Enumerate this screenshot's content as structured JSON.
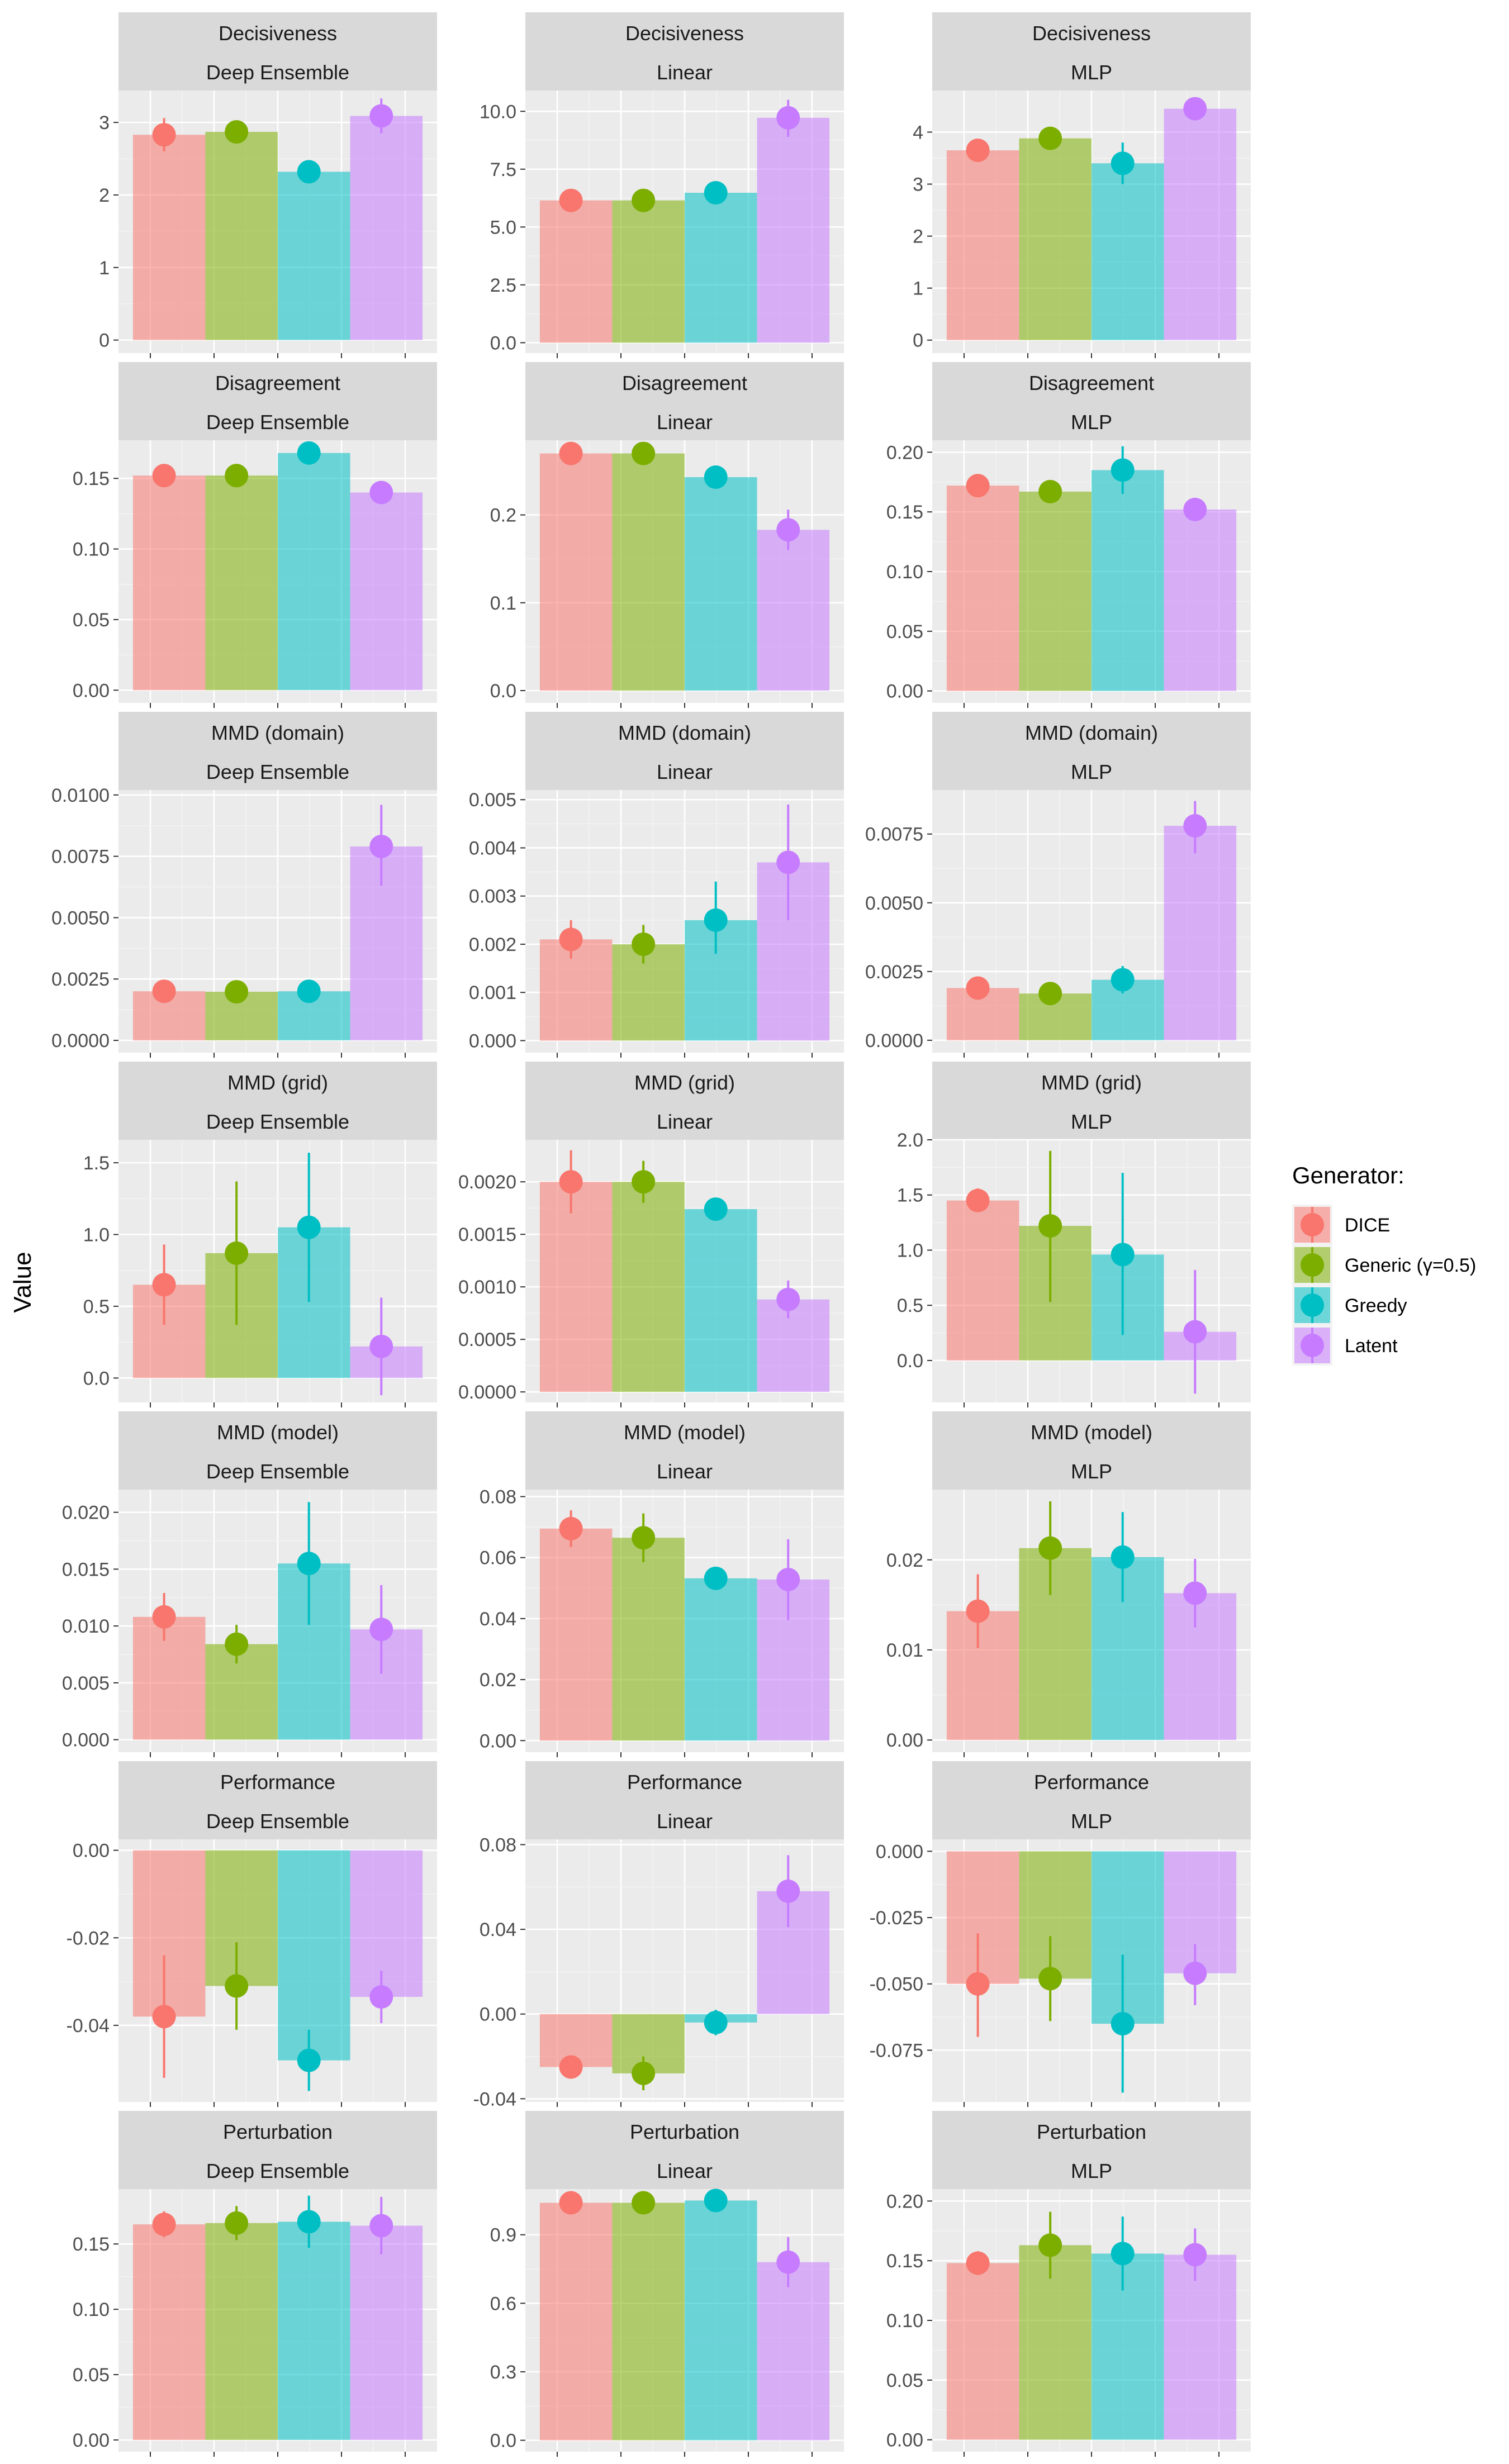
{
  "ylabel": "Value",
  "legend": {
    "title": "Generator:",
    "placement": "right",
    "entries": [
      {
        "name": "DICE",
        "color": "#F8766D"
      },
      {
        "name": "Generic (γ=0.5)",
        "color": "#7CAE00"
      },
      {
        "name": "Greedy",
        "color": "#00BFC4"
      },
      {
        "name": "Latent",
        "color": "#C77CFF"
      }
    ]
  },
  "chart_data": [
    {
      "type": "bar",
      "metric": "Decisiveness",
      "model": "Deep Ensemble",
      "categories": [
        "DICE",
        "Generic (γ=0.5)",
        "Greedy",
        "Latent"
      ],
      "values": [
        2.83,
        2.87,
        2.32,
        3.09
      ],
      "err_low": [
        2.6,
        2.78,
        2.22,
        2.85
      ],
      "err_high": [
        3.06,
        2.96,
        2.42,
        3.33
      ],
      "ylim": [
        -0.18,
        3.44
      ],
      "ticks": [
        0,
        1,
        2,
        3
      ],
      "tick_labels": [
        "0",
        "1",
        "2",
        "3"
      ]
    },
    {
      "type": "bar",
      "metric": "Decisiveness",
      "model": "Linear",
      "categories": [
        "DICE",
        "Generic (γ=0.5)",
        "Greedy",
        "Latent"
      ],
      "values": [
        6.15,
        6.15,
        6.48,
        9.72
      ],
      "err_low": [
        6.0,
        5.95,
        6.15,
        8.9
      ],
      "err_high": [
        6.3,
        6.35,
        6.8,
        10.5
      ],
      "ylim": [
        -0.45,
        10.9
      ],
      "ticks": [
        0,
        2.5,
        5,
        7.5,
        10
      ],
      "tick_labels": [
        "0.0",
        "2.5",
        "5.0",
        "7.5",
        "10.0"
      ]
    },
    {
      "type": "bar",
      "metric": "Decisiveness",
      "model": "MLP",
      "categories": [
        "DICE",
        "Generic (γ=0.5)",
        "Greedy",
        "Latent"
      ],
      "values": [
        3.65,
        3.88,
        3.4,
        4.45
      ],
      "err_low": [
        3.5,
        3.78,
        3.0,
        4.3
      ],
      "err_high": [
        3.8,
        3.98,
        3.8,
        4.6
      ],
      "ylim": [
        -0.25,
        4.8
      ],
      "ticks": [
        0,
        1,
        2,
        3,
        4
      ],
      "tick_labels": [
        "0",
        "1",
        "2",
        "3",
        "4"
      ]
    },
    {
      "type": "bar",
      "metric": "Disagreement",
      "model": "Deep Ensemble",
      "categories": [
        "DICE",
        "Generic (γ=0.5)",
        "Greedy",
        "Latent"
      ],
      "values": [
        0.152,
        0.152,
        0.168,
        0.14
      ],
      "err_low": [
        0.147,
        0.147,
        0.16,
        0.136
      ],
      "err_high": [
        0.157,
        0.157,
        0.176,
        0.144
      ],
      "ylim": [
        -0.009,
        0.177
      ],
      "ticks": [
        0,
        0.05,
        0.1,
        0.15
      ],
      "tick_labels": [
        "0.00",
        "0.05",
        "0.10",
        "0.15"
      ]
    },
    {
      "type": "bar",
      "metric": "Disagreement",
      "model": "Linear",
      "categories": [
        "DICE",
        "Generic (γ=0.5)",
        "Greedy",
        "Latent"
      ],
      "values": [
        0.27,
        0.27,
        0.243,
        0.183
      ],
      "err_low": [
        0.265,
        0.265,
        0.235,
        0.16
      ],
      "err_high": [
        0.275,
        0.275,
        0.251,
        0.206
      ],
      "ylim": [
        -0.014,
        0.285
      ],
      "ticks": [
        0,
        0.1,
        0.2
      ],
      "tick_labels": [
        "0.0",
        "0.1",
        "0.2"
      ]
    },
    {
      "type": "bar",
      "metric": "Disagreement",
      "model": "MLP",
      "categories": [
        "DICE",
        "Generic (γ=0.5)",
        "Greedy",
        "Latent"
      ],
      "values": [
        0.172,
        0.167,
        0.185,
        0.152
      ],
      "err_low": [
        0.164,
        0.162,
        0.165,
        0.147
      ],
      "err_high": [
        0.18,
        0.172,
        0.205,
        0.157
      ],
      "ylim": [
        -0.01,
        0.21
      ],
      "ticks": [
        0,
        0.05,
        0.1,
        0.15,
        0.2
      ],
      "tick_labels": [
        "0.00",
        "0.05",
        "0.10",
        "0.15",
        "0.20"
      ]
    },
    {
      "type": "bar",
      "metric": "MMD (domain)",
      "model": "Deep Ensemble",
      "categories": [
        "DICE",
        "Generic (γ=0.5)",
        "Greedy",
        "Latent"
      ],
      "values": [
        0.002,
        0.00198,
        0.002,
        0.0079
      ],
      "err_low": [
        0.0019,
        0.0019,
        0.0019,
        0.0063
      ],
      "err_high": [
        0.0021,
        0.0021,
        0.0021,
        0.0096
      ],
      "ylim": [
        -0.0005,
        0.0102
      ],
      "ticks": [
        0,
        0.0025,
        0.005,
        0.0075,
        0.01
      ],
      "tick_labels": [
        "0.0000",
        "0.0025",
        "0.0050",
        "0.0075",
        "0.0100"
      ]
    },
    {
      "type": "bar",
      "metric": "MMD (domain)",
      "model": "Linear",
      "categories": [
        "DICE",
        "Generic (γ=0.5)",
        "Greedy",
        "Latent"
      ],
      "values": [
        0.0021,
        0.002,
        0.0025,
        0.0037
      ],
      "err_low": [
        0.0017,
        0.0016,
        0.0018,
        0.0025
      ],
      "err_high": [
        0.0025,
        0.0024,
        0.0033,
        0.0049
      ],
      "ylim": [
        -0.00025,
        0.0052
      ],
      "ticks": [
        0,
        0.001,
        0.002,
        0.003,
        0.004,
        0.005
      ],
      "tick_labels": [
        "0.000",
        "0.001",
        "0.002",
        "0.003",
        "0.004",
        "0.005"
      ]
    },
    {
      "type": "bar",
      "metric": "MMD (domain)",
      "model": "MLP",
      "categories": [
        "DICE",
        "Generic (γ=0.5)",
        "Greedy",
        "Latent"
      ],
      "values": [
        0.0019,
        0.0017,
        0.0022,
        0.0078
      ],
      "err_low": [
        0.0016,
        0.0014,
        0.0017,
        0.0068
      ],
      "err_high": [
        0.0022,
        0.002,
        0.0027,
        0.0087
      ],
      "ylim": [
        -0.00045,
        0.0091
      ],
      "ticks": [
        0,
        0.0025,
        0.005,
        0.0075
      ],
      "tick_labels": [
        "0.0000",
        "0.0025",
        "0.0050",
        "0.0075"
      ]
    },
    {
      "type": "bar",
      "metric": "MMD (grid)",
      "model": "Deep Ensemble",
      "categories": [
        "DICE",
        "Generic (γ=0.5)",
        "Greedy",
        "Latent"
      ],
      "values": [
        0.65,
        0.87,
        1.05,
        0.22
      ],
      "err_low": [
        0.37,
        0.37,
        0.53,
        -0.12
      ],
      "err_high": [
        0.93,
        1.37,
        1.57,
        0.56
      ],
      "ylim": [
        -0.17,
        1.66
      ],
      "ticks": [
        0,
        0.5,
        1,
        1.5
      ],
      "tick_labels": [
        "0.0",
        "0.5",
        "1.0",
        "1.5"
      ]
    },
    {
      "type": "bar",
      "metric": "MMD (grid)",
      "model": "Linear",
      "categories": [
        "DICE",
        "Generic (γ=0.5)",
        "Greedy",
        "Latent"
      ],
      "values": [
        0.002,
        0.002,
        0.00174,
        0.00088
      ],
      "err_low": [
        0.0017,
        0.0018,
        0.00165,
        0.0007
      ],
      "err_high": [
        0.0023,
        0.0022,
        0.00183,
        0.00106
      ],
      "ylim": [
        -0.0001,
        0.0024
      ],
      "ticks": [
        0,
        0.0005,
        0.001,
        0.0015,
        0.002
      ],
      "tick_labels": [
        "0.0000",
        "0.0005",
        "0.0010",
        "0.0015",
        "0.0020"
      ]
    },
    {
      "type": "bar",
      "metric": "MMD (grid)",
      "model": "MLP",
      "categories": [
        "DICE",
        "Generic (γ=0.5)",
        "Greedy",
        "Latent"
      ],
      "values": [
        1.45,
        1.22,
        0.96,
        0.26
      ],
      "err_low": [
        1.35,
        0.53,
        0.23,
        -0.3
      ],
      "err_high": [
        1.56,
        1.9,
        1.7,
        0.82
      ],
      "ylim": [
        -0.38,
        2.0
      ],
      "ticks": [
        0,
        0.5,
        1,
        1.5,
        2
      ],
      "tick_labels": [
        "0.0",
        "0.5",
        "1.0",
        "1.5",
        "2.0"
      ]
    },
    {
      "type": "bar",
      "metric": "MMD (model)",
      "model": "Deep Ensemble",
      "categories": [
        "DICE",
        "Generic (γ=0.5)",
        "Greedy",
        "Latent"
      ],
      "values": [
        0.0108,
        0.0084,
        0.0155,
        0.0097
      ],
      "err_low": [
        0.0087,
        0.0067,
        0.0101,
        0.0058
      ],
      "err_high": [
        0.0129,
        0.0101,
        0.0209,
        0.0136
      ],
      "ylim": [
        -0.0011,
        0.022
      ],
      "ticks": [
        0,
        0.005,
        0.01,
        0.015,
        0.02
      ],
      "tick_labels": [
        "0.000",
        "0.005",
        "0.010",
        "0.015",
        "0.020"
      ]
    },
    {
      "type": "bar",
      "metric": "MMD (model)",
      "model": "Linear",
      "categories": [
        "DICE",
        "Generic (γ=0.5)",
        "Greedy",
        "Latent"
      ],
      "values": [
        0.0695,
        0.0665,
        0.0532,
        0.0528
      ],
      "err_low": [
        0.0635,
        0.0585,
        0.0512,
        0.0395
      ],
      "err_high": [
        0.0755,
        0.0745,
        0.0552,
        0.066
      ],
      "ylim": [
        -0.0038,
        0.0823
      ],
      "ticks": [
        0,
        0.02,
        0.04,
        0.06,
        0.08
      ],
      "tick_labels": [
        "0.00",
        "0.02",
        "0.04",
        "0.06",
        "0.08"
      ]
    },
    {
      "type": "bar",
      "metric": "MMD (model)",
      "model": "MLP",
      "categories": [
        "DICE",
        "Generic (γ=0.5)",
        "Greedy",
        "Latent"
      ],
      "values": [
        0.0143,
        0.0213,
        0.0203,
        0.0163
      ],
      "err_low": [
        0.0102,
        0.0161,
        0.0153,
        0.0125
      ],
      "err_high": [
        0.0184,
        0.0265,
        0.0253,
        0.0201
      ],
      "ylim": [
        -0.00135,
        0.0278
      ],
      "ticks": [
        0,
        0.01,
        0.02
      ],
      "tick_labels": [
        "0.00",
        "0.01",
        "0.02"
      ]
    },
    {
      "type": "bar",
      "metric": "Performance",
      "model": "Deep Ensemble",
      "categories": [
        "DICE",
        "Generic (γ=0.5)",
        "Greedy",
        "Latent"
      ],
      "values": [
        -0.038,
        -0.031,
        -0.048,
        -0.0335
      ],
      "err_low": [
        -0.052,
        -0.041,
        -0.055,
        -0.0395
      ],
      "err_high": [
        -0.024,
        -0.021,
        -0.041,
        -0.0275
      ],
      "ylim": [
        -0.0575,
        0.0025
      ],
      "ticks": [
        -0.04,
        -0.02,
        0
      ],
      "tick_labels": [
        "-0.04",
        "-0.02",
        "0.00"
      ]
    },
    {
      "type": "bar",
      "metric": "Performance",
      "model": "Linear",
      "categories": [
        "DICE",
        "Generic (γ=0.5)",
        "Greedy",
        "Latent"
      ],
      "values": [
        -0.025,
        -0.028,
        -0.004,
        0.058
      ],
      "err_low": [
        -0.029,
        -0.036,
        -0.01,
        0.041
      ],
      "err_high": [
        -0.021,
        -0.02,
        0.002,
        0.075
      ],
      "ylim": [
        -0.0415,
        0.0825
      ],
      "ticks": [
        -0.04,
        0,
        0.04,
        0.08
      ],
      "tick_labels": [
        "-0.04",
        "0.00",
        "0.04",
        "0.08"
      ]
    },
    {
      "type": "bar",
      "metric": "Performance",
      "model": "MLP",
      "categories": [
        "DICE",
        "Generic (γ=0.5)",
        "Greedy",
        "Latent"
      ],
      "values": [
        -0.05,
        -0.048,
        -0.065,
        -0.046
      ],
      "err_low": [
        -0.07,
        -0.064,
        -0.091,
        -0.058
      ],
      "err_high": [
        -0.031,
        -0.032,
        -0.039,
        -0.035
      ],
      "ylim": [
        -0.0945,
        0.0045
      ],
      "ticks": [
        -0.075,
        -0.05,
        -0.025,
        0
      ],
      "tick_labels": [
        "-0.075",
        "-0.050",
        "-0.025",
        "0.000"
      ]
    },
    {
      "type": "bar",
      "metric": "Perturbation",
      "model": "Deep Ensemble",
      "categories": [
        "DICE",
        "Generic (γ=0.5)",
        "Greedy",
        "Latent"
      ],
      "values": [
        0.165,
        0.166,
        0.167,
        0.164
      ],
      "err_low": [
        0.155,
        0.153,
        0.147,
        0.142
      ],
      "err_high": [
        0.175,
        0.179,
        0.187,
        0.186
      ],
      "ylim": [
        -0.009,
        0.192
      ],
      "ticks": [
        0,
        0.05,
        0.1,
        0.15
      ],
      "tick_labels": [
        "0.00",
        "0.05",
        "0.10",
        "0.15"
      ]
    },
    {
      "type": "bar",
      "metric": "Perturbation",
      "model": "Linear",
      "categories": [
        "DICE",
        "Generic (γ=0.5)",
        "Greedy",
        "Latent"
      ],
      "values": [
        1.04,
        1.04,
        1.05,
        0.78
      ],
      "err_low": [
        1.02,
        1.02,
        1.03,
        0.67
      ],
      "err_high": [
        1.06,
        1.06,
        1.07,
        0.89
      ],
      "ylim": [
        -0.05,
        1.1
      ],
      "ticks": [
        0,
        0.3,
        0.6,
        0.9
      ],
      "tick_labels": [
        "0.0",
        "0.3",
        "0.6",
        "0.9"
      ]
    },
    {
      "type": "bar",
      "metric": "Perturbation",
      "model": "MLP",
      "categories": [
        "DICE",
        "Generic (γ=0.5)",
        "Greedy",
        "Latent"
      ],
      "values": [
        0.148,
        0.163,
        0.156,
        0.155
      ],
      "err_low": [
        0.138,
        0.135,
        0.125,
        0.133
      ],
      "err_high": [
        0.158,
        0.191,
        0.187,
        0.177
      ],
      "ylim": [
        -0.01,
        0.21
      ],
      "ticks": [
        0,
        0.05,
        0.1,
        0.15,
        0.2
      ],
      "tick_labels": [
        "0.00",
        "0.05",
        "0.10",
        "0.15",
        "0.20"
      ]
    }
  ]
}
